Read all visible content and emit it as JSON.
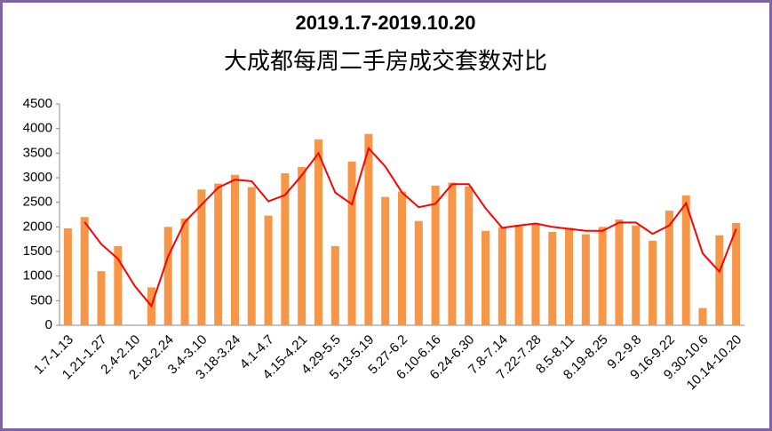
{
  "chart_data": {
    "type": "bar-line",
    "title": "2019.1.7-2019.10.20",
    "subtitle": "大成都每周二手房成交套数对比",
    "categories": [
      "1.7-1.13",
      null,
      "1.21-1.27",
      null,
      "2.4-2.10",
      null,
      "2.18-2.24",
      null,
      "3.4-3.10",
      null,
      "3.18-3.24",
      null,
      "4.1-4.7",
      null,
      "4.15-4.21",
      null,
      "4.29-5.5",
      null,
      "5.13-5.19",
      null,
      "5.27-6.2",
      null,
      "6.10-6.16",
      null,
      "6.24-6.30",
      null,
      "7.8-7.14",
      null,
      "7.22-7.28",
      null,
      "8.5-8.11",
      null,
      "8.19-8.25",
      null,
      "9.2-9.8",
      null,
      "9.16-9.22",
      null,
      "9.30-10.6",
      null,
      "10.14-10.20"
    ],
    "series": [
      {
        "type": "bar",
        "color": "#f79646",
        "values": [
          1970,
          2200,
          1100,
          1610,
          0,
          770,
          2000,
          2170,
          2760,
          2880,
          3060,
          2810,
          2230,
          3090,
          3220,
          3780,
          1610,
          3330,
          3890,
          2610,
          2720,
          2120,
          2840,
          2900,
          2820,
          1920,
          1990,
          2040,
          2070,
          1900,
          1980,
          1850,
          2000,
          2150,
          2030,
          1720,
          2330,
          2640,
          350,
          1830,
          2080
        ]
      },
      {
        "type": "line",
        "color": "#ff0000",
        "values": [
          null,
          2100,
          1650,
          1350,
          800,
          390,
          1400,
          2100,
          2450,
          2800,
          2960,
          2930,
          2520,
          2650,
          3050,
          3500,
          2700,
          2460,
          3600,
          3230,
          2700,
          2400,
          2470,
          2870,
          2870,
          2380,
          1980,
          2030,
          2070,
          2000,
          1960,
          1920,
          1920,
          2090,
          2090,
          1860,
          2030,
          2480,
          1460,
          1090,
          1960
        ]
      }
    ],
    "ylim": [
      0,
      4500
    ],
    "yticks": [
      0,
      500,
      1000,
      1500,
      2000,
      2500,
      3000,
      3500,
      4000,
      4500
    ],
    "grid": false
  }
}
